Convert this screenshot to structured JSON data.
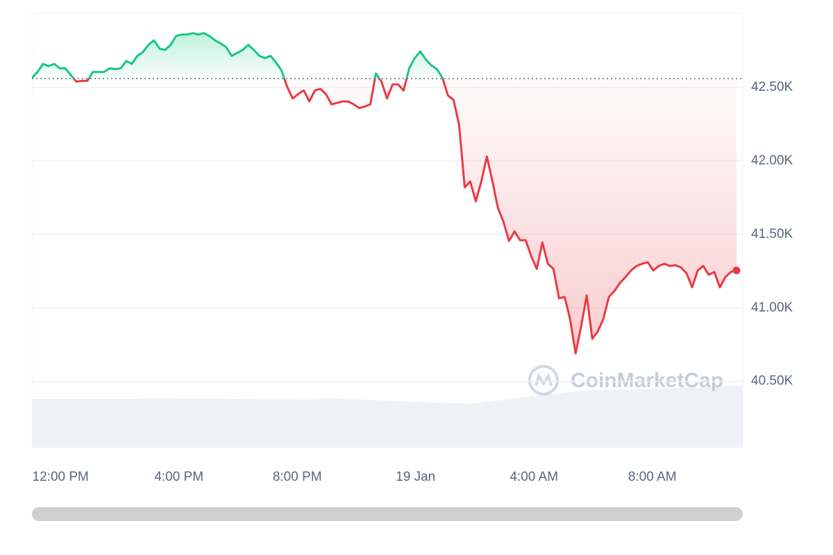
{
  "chart_data": {
    "type": "line",
    "watermark": "CoinMarketCap",
    "x": [
      0,
      11.25,
      22.5,
      33.75,
      45,
      56.25,
      67.5,
      78.75,
      90,
      101.25,
      112.5,
      123.75,
      135,
      146.25,
      157.5,
      168.75,
      180,
      191.25,
      202.5,
      213.75,
      225,
      236.25,
      247.5,
      258.75,
      270,
      281.25,
      292.5,
      303.75,
      315,
      326.25,
      337.5,
      348.75,
      360,
      371.25,
      382.5,
      393.75,
      405,
      416.25,
      427.5,
      438.75,
      450,
      461.25,
      472.5,
      483.75,
      495,
      506.25,
      517.5,
      528.75,
      540,
      551.25,
      562.5,
      573.75,
      585,
      596.25,
      607.5,
      618.75,
      630,
      641.25,
      652.5,
      663.75,
      675,
      686.25,
      697.5,
      708.75,
      720,
      731.25,
      742.5,
      753.75,
      765,
      776.25,
      787.5,
      798.75,
      810,
      821.25,
      832.5,
      843.75,
      855,
      866.25,
      877.5,
      888.75,
      900,
      911.25,
      922.5,
      933.75,
      945,
      956.25,
      967.5,
      978.75,
      990,
      1001.25,
      1012.5,
      1023.75,
      1035,
      1046.25,
      1057.5,
      1068.75,
      1080,
      1091.25,
      1102.5,
      1113.75,
      1125,
      1136.25,
      1147.5,
      1158.75,
      1170,
      1181.25,
      1192.5,
      1203.75,
      1215,
      1226.25,
      1237.5,
      1248.75,
      1260,
      1271.25,
      1282.5,
      1293.75,
      1305,
      1316.25,
      1327.5,
      1338.75,
      1350,
      1361.25,
      1372.5,
      1383.75,
      1395,
      1406.25,
      1417.5,
      1428.75
    ],
    "values": [
      42565,
      42605,
      42660,
      42645,
      42660,
      42630,
      42630,
      42585,
      42540,
      42545,
      42545,
      42605,
      42605,
      42605,
      42630,
      42625,
      42630,
      42680,
      42660,
      42715,
      42740,
      42790,
      42820,
      42765,
      42755,
      42790,
      42850,
      42860,
      42860,
      42870,
      42860,
      42870,
      42850,
      42820,
      42800,
      42775,
      42715,
      42735,
      42755,
      42790,
      42755,
      42715,
      42700,
      42715,
      42670,
      42615,
      42505,
      42425,
      42455,
      42480,
      42405,
      42480,
      42490,
      42455,
      42385,
      42395,
      42405,
      42405,
      42385,
      42360,
      42370,
      42385,
      42595,
      42540,
      42425,
      42520,
      42520,
      42480,
      42630,
      42700,
      42745,
      42690,
      42650,
      42625,
      42565,
      42445,
      42415,
      42245,
      41820,
      41860,
      41725,
      41860,
      42030,
      41860,
      41680,
      41585,
      41455,
      41520,
      41460,
      41460,
      41350,
      41265,
      41445,
      41300,
      41265,
      41065,
      41075,
      40925,
      40690,
      40875,
      41085,
      40790,
      40840,
      40925,
      41075,
      41115,
      41170,
      41210,
      41255,
      41285,
      41300,
      41310,
      41255,
      41285,
      41300,
      41285,
      41290,
      41275,
      41235,
      41140,
      41255,
      41285,
      41225,
      41245,
      41140,
      41210,
      41245,
      41255
    ],
    "reference": 42560,
    "up_color": "#16c784",
    "down_color": "#ea3943",
    "xlim": [
      0,
      1440
    ],
    "xticks": [
      {
        "value": 58,
        "label": "12:00 PM"
      },
      {
        "value": 298,
        "label": "4:00 PM"
      },
      {
        "value": 538,
        "label": "8:00 PM"
      },
      {
        "value": 778,
        "label": "19 Jan"
      },
      {
        "value": 1018,
        "label": "4:00 AM"
      },
      {
        "value": 1258,
        "label": "8:00 AM"
      }
    ],
    "ylim": [
      40050,
      43010
    ],
    "yticks": [
      {
        "value": 40500,
        "label": "40.50K"
      },
      {
        "value": 41000,
        "label": "41.00K"
      },
      {
        "value": 41500,
        "label": "41.50K"
      },
      {
        "value": 42000,
        "label": "42.00K"
      },
      {
        "value": 42500,
        "label": "42.50K"
      }
    ],
    "grid": true
  }
}
